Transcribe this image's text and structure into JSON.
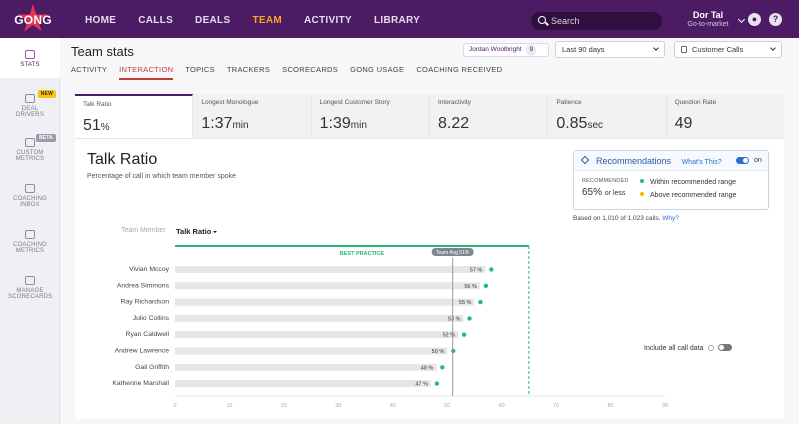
{
  "app": {
    "logo_text": "GONG"
  },
  "topnav": {
    "items": [
      "HOME",
      "CALLS",
      "DEALS",
      "TEAM",
      "ACTIVITY",
      "LIBRARY"
    ],
    "active": "TEAM"
  },
  "search": {
    "placeholder": "Search"
  },
  "user": {
    "name": "Dor Tal",
    "role": "Go-to-market"
  },
  "help_icon": "?",
  "sidebar": {
    "items": [
      {
        "label": "STATS",
        "icon": "bar-chart-icon",
        "active": true,
        "badge": ""
      },
      {
        "label": "DEAL DRIVERS",
        "icon": "deal-drivers-icon",
        "active": false,
        "badge": "NEW"
      },
      {
        "label": "CUSTOM METRICS",
        "icon": "custom-metrics-icon",
        "active": false,
        "badge": "BETA"
      },
      {
        "label": "COACHING INBOX",
        "icon": "coaching-inbox-icon",
        "active": false,
        "badge": ""
      },
      {
        "label": "COACHING METRICS",
        "icon": "coaching-metrics-icon",
        "active": false,
        "badge": ""
      },
      {
        "label": "MANAGE SCORECARDS",
        "icon": "scorecards-icon",
        "active": false,
        "badge": ""
      }
    ]
  },
  "page": {
    "title": "Team stats"
  },
  "subtabs": {
    "items": [
      "ACTIVITY",
      "INTERACTION",
      "TOPICS",
      "TRACKERS",
      "SCORECARDS",
      "GONG USAGE",
      "COACHING RECEIVED"
    ],
    "active": "INTERACTION"
  },
  "filters": {
    "member": "Jordan Woolbright",
    "member_count": "9",
    "period": "Last 90 days",
    "call_type": "Customer Calls"
  },
  "metrics": [
    {
      "label": "Talk Ratio",
      "value": "51",
      "unit": "%",
      "active": true
    },
    {
      "label": "Longest Monologue",
      "value": "1:37",
      "unit": "min",
      "active": false
    },
    {
      "label": "Longest Customer Story",
      "value": "1:39",
      "unit": "min",
      "active": false
    },
    {
      "label": "Interactivity",
      "value": "8.22",
      "unit": "",
      "active": false
    },
    {
      "label": "Patience",
      "value": "0.85",
      "unit": "sec",
      "active": false
    },
    {
      "label": "Question Rate",
      "value": "49",
      "unit": "",
      "active": false
    }
  ],
  "detail": {
    "title": "Talk Ratio",
    "subtitle": "Percentage of call in which team member spoke",
    "recommendations": {
      "title": "Recommendations",
      "whats_this": "What's This?",
      "toggle_label": "on",
      "recommended_label": "RECOMMENDED",
      "recommended_value": "65%",
      "recommended_suffix": "or less",
      "legend_within": "Within recommended range",
      "legend_above": "Above recommended range",
      "color_within": "#27b87a",
      "color_above": "#f5b800"
    },
    "based_on": "Based on 1,010 of 1,023 calls.",
    "why": "Why?",
    "column_member": "Team Member",
    "column_metric": "Talk Ratio",
    "include_all": "Include all call data"
  },
  "chart_data": {
    "type": "bar",
    "categories": [
      "Vivian Mccoy",
      "Andrea Simmons",
      "Ray Richardson",
      "Julio Collins",
      "Ryan Caldwell",
      "Andrew Lawrence",
      "Gail Griffith",
      "Katherine Marshall"
    ],
    "values": [
      57,
      56,
      55,
      53,
      52,
      50,
      48,
      47
    ],
    "value_labels": [
      "57 %",
      "56 %",
      "55 %",
      "53 %",
      "52 %",
      "50 %",
      "48 %",
      "47 %"
    ],
    "xlim": [
      0,
      90
    ],
    "x_ticks": [
      0,
      10,
      20,
      30,
      40,
      50,
      60,
      70,
      80,
      90
    ],
    "best_practice": {
      "label": "BEST PRACTICE",
      "from": 0,
      "to": 65
    },
    "team_avg": {
      "label": "Team Avg 51%",
      "value": 51
    },
    "bar_color": "#e6e6ea",
    "dot_color": "#27b87a",
    "best_practice_color": "#27b87a"
  }
}
